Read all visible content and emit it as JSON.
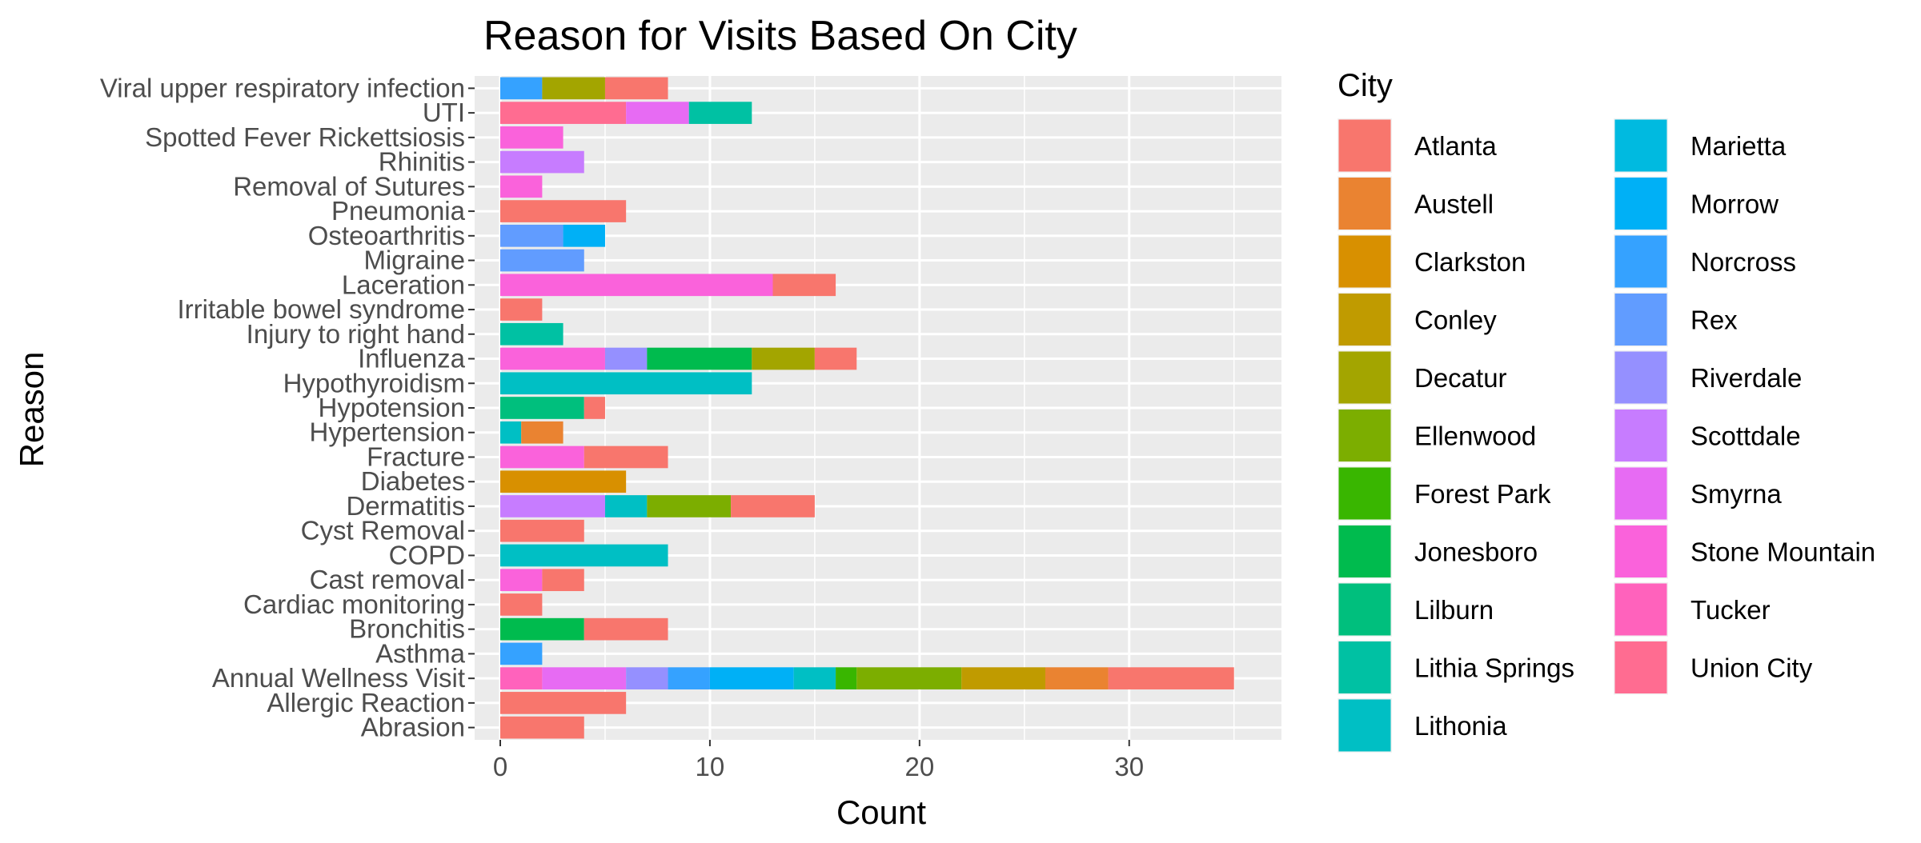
{
  "chart_data": {
    "type": "bar",
    "orientation": "horizontal",
    "stacked": true,
    "title": "Reason for Visits Based On City",
    "xlabel": "Count",
    "ylabel": "Reason",
    "xlim": [
      0,
      36.5
    ],
    "xticks": [
      0,
      10,
      20,
      30
    ],
    "grid": true,
    "legend_title": "City",
    "legend_position": "right",
    "categories": [
      "Abrasion",
      "Allergic Reaction",
      "Annual Wellness Visit",
      "Asthma",
      "Bronchitis",
      "Cardiac monitoring",
      "Cast removal",
      "COPD",
      "Cyst Removal",
      "Dermatitis",
      "Diabetes",
      "Fracture",
      "Hypertension",
      "Hypotension",
      "Hypothyroidism",
      "Influenza",
      "Injury to right hand",
      "Irritable bowel syndrome",
      "Laceration",
      "Migraine",
      "Osteoarthritis",
      "Pneumonia",
      "Removal of Sutures",
      "Rhinitis",
      "Spotted Fever Rickettsiosis",
      "UTI",
      "Viral upper respiratory infection"
    ],
    "series": [
      {
        "name": "Atlanta",
        "color": "#F8766D",
        "values": [
          4,
          6,
          6,
          0,
          4,
          2,
          2,
          0,
          4,
          4,
          0,
          4,
          0,
          1,
          0,
          2,
          0,
          2,
          3,
          0,
          0,
          6,
          0,
          0,
          0,
          0,
          3
        ]
      },
      {
        "name": "Austell",
        "color": "#EA8331",
        "values": [
          0,
          0,
          3,
          0,
          0,
          0,
          0,
          0,
          0,
          0,
          0,
          0,
          2,
          0,
          0,
          0,
          0,
          0,
          0,
          0,
          0,
          0,
          0,
          0,
          0,
          0,
          0
        ]
      },
      {
        "name": "Clarkston",
        "color": "#D89000",
        "values": [
          0,
          0,
          0,
          0,
          0,
          0,
          0,
          0,
          0,
          0,
          6,
          0,
          0,
          0,
          0,
          0,
          0,
          0,
          0,
          0,
          0,
          0,
          0,
          0,
          0,
          0,
          0
        ]
      },
      {
        "name": "Conley",
        "color": "#C09B00",
        "values": [
          0,
          0,
          4,
          0,
          0,
          0,
          0,
          0,
          0,
          0,
          0,
          0,
          0,
          0,
          0,
          0,
          0,
          0,
          0,
          0,
          0,
          0,
          0,
          0,
          0,
          0,
          0
        ]
      },
      {
        "name": "Decatur",
        "color": "#A3A500",
        "values": [
          0,
          0,
          0,
          0,
          0,
          0,
          0,
          0,
          0,
          0,
          0,
          0,
          0,
          0,
          0,
          3,
          0,
          0,
          0,
          0,
          0,
          0,
          0,
          0,
          0,
          0,
          3
        ]
      },
      {
        "name": "Ellenwood",
        "color": "#7CAE00",
        "values": [
          0,
          0,
          5,
          0,
          0,
          0,
          0,
          0,
          0,
          4,
          0,
          0,
          0,
          0,
          0,
          0,
          0,
          0,
          0,
          0,
          0,
          0,
          0,
          0,
          0,
          0,
          0
        ]
      },
      {
        "name": "Forest Park",
        "color": "#39B600",
        "values": [
          0,
          0,
          1,
          0,
          0,
          0,
          0,
          0,
          0,
          0,
          0,
          0,
          0,
          0,
          0,
          0,
          0,
          0,
          0,
          0,
          0,
          0,
          0,
          0,
          0,
          0,
          0
        ]
      },
      {
        "name": "Jonesboro",
        "color": "#00BB4E",
        "values": [
          0,
          0,
          0,
          0,
          4,
          0,
          0,
          0,
          0,
          0,
          0,
          0,
          0,
          0,
          0,
          5,
          0,
          0,
          0,
          0,
          0,
          0,
          0,
          0,
          0,
          0,
          0
        ]
      },
      {
        "name": "Lilburn",
        "color": "#00BF7D",
        "values": [
          0,
          0,
          0,
          0,
          0,
          0,
          0,
          0,
          0,
          0,
          0,
          0,
          0,
          4,
          0,
          0,
          0,
          0,
          0,
          0,
          0,
          0,
          0,
          0,
          0,
          0,
          0
        ]
      },
      {
        "name": "Lithia Springs",
        "color": "#00C1A3",
        "values": [
          0,
          0,
          0,
          0,
          0,
          0,
          0,
          0,
          0,
          0,
          0,
          0,
          0,
          0,
          0,
          0,
          3,
          0,
          0,
          0,
          0,
          0,
          0,
          0,
          0,
          3,
          0
        ]
      },
      {
        "name": "Lithonia",
        "color": "#00BFC4",
        "values": [
          0,
          0,
          2,
          0,
          0,
          0,
          0,
          8,
          0,
          2,
          0,
          0,
          1,
          0,
          12,
          0,
          0,
          0,
          0,
          0,
          0,
          0,
          0,
          0,
          0,
          0,
          0
        ]
      },
      {
        "name": "Marietta",
        "color": "#00BAE0",
        "values": [
          0,
          0,
          0,
          0,
          0,
          0,
          0,
          0,
          0,
          0,
          0,
          0,
          0,
          0,
          0,
          0,
          0,
          0,
          0,
          0,
          0,
          0,
          0,
          0,
          0,
          0,
          0
        ]
      },
      {
        "name": "Morrow",
        "color": "#00B0F6",
        "values": [
          0,
          0,
          4,
          0,
          0,
          0,
          0,
          0,
          0,
          0,
          0,
          0,
          0,
          0,
          0,
          0,
          0,
          0,
          0,
          0,
          2,
          0,
          0,
          0,
          0,
          0,
          0
        ]
      },
      {
        "name": "Norcross",
        "color": "#35A2FF",
        "values": [
          0,
          0,
          2,
          2,
          0,
          0,
          0,
          0,
          0,
          0,
          0,
          0,
          0,
          0,
          0,
          0,
          0,
          0,
          0,
          0,
          0,
          0,
          0,
          0,
          0,
          0,
          2
        ]
      },
      {
        "name": "Rex",
        "color": "#619CFF",
        "values": [
          0,
          0,
          0,
          0,
          0,
          0,
          0,
          0,
          0,
          0,
          0,
          0,
          0,
          0,
          0,
          0,
          0,
          0,
          0,
          4,
          3,
          0,
          0,
          0,
          0,
          0,
          0
        ]
      },
      {
        "name": "Riverdale",
        "color": "#9590FF",
        "values": [
          0,
          0,
          2,
          0,
          0,
          0,
          0,
          0,
          0,
          0,
          0,
          0,
          0,
          0,
          0,
          2,
          0,
          0,
          0,
          0,
          0,
          0,
          0,
          0,
          0,
          0,
          0
        ]
      },
      {
        "name": "Scottdale",
        "color": "#C77CFF",
        "values": [
          0,
          0,
          0,
          0,
          0,
          0,
          0,
          0,
          0,
          5,
          0,
          0,
          0,
          0,
          0,
          0,
          0,
          0,
          0,
          0,
          0,
          0,
          0,
          4,
          0,
          0,
          0
        ]
      },
      {
        "name": "Smyrna",
        "color": "#E76BF3",
        "values": [
          0,
          0,
          4,
          0,
          0,
          0,
          0,
          0,
          0,
          0,
          0,
          0,
          0,
          0,
          0,
          0,
          0,
          0,
          0,
          0,
          0,
          0,
          0,
          0,
          0,
          3,
          0
        ]
      },
      {
        "name": "Stone Mountain",
        "color": "#FA62DB",
        "values": [
          0,
          0,
          0,
          0,
          0,
          0,
          2,
          0,
          0,
          0,
          0,
          4,
          0,
          0,
          0,
          5,
          0,
          0,
          13,
          0,
          0,
          0,
          2,
          0,
          3,
          0,
          0
        ]
      },
      {
        "name": "Tucker",
        "color": "#FF62BC",
        "values": [
          0,
          0,
          2,
          0,
          0,
          0,
          0,
          0,
          0,
          0,
          0,
          0,
          0,
          0,
          0,
          0,
          0,
          0,
          0,
          0,
          0,
          0,
          0,
          0,
          0,
          0,
          0
        ]
      },
      {
        "name": "Union City",
        "color": "#FF6C91",
        "values": [
          0,
          0,
          0,
          0,
          0,
          0,
          0,
          0,
          0,
          0,
          0,
          0,
          0,
          0,
          0,
          0,
          0,
          0,
          0,
          0,
          0,
          0,
          0,
          0,
          0,
          6,
          0
        ]
      }
    ]
  }
}
